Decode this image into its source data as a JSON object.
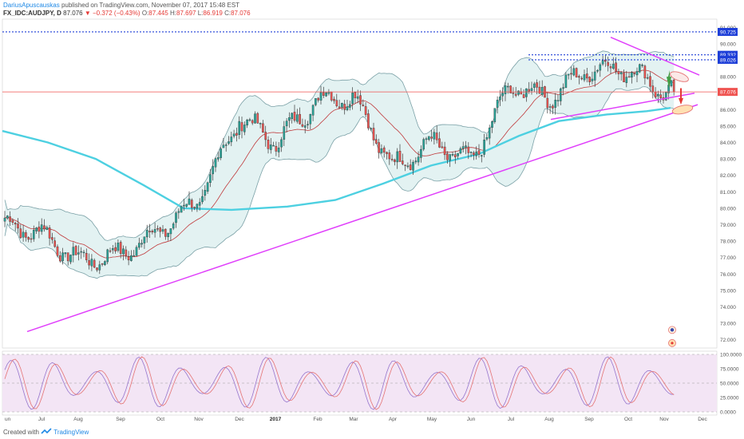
{
  "header": {
    "author": "DariusApuscauskas",
    "published_text": "published on TradingView.com, November 07, 2017 15:48 EST",
    "symbol": "FX_IDC:AUDJPY, D",
    "last": "87.076",
    "arrow": "▼",
    "change": "−0.372 (−0.43%)",
    "o_label": "O:",
    "o_val": "87.445",
    "h_label": "H:",
    "h_val": "87.697",
    "l_label": "L:",
    "l_val": "86.919",
    "c_label": "C:",
    "c_val": "87.076"
  },
  "footer": {
    "created_with": "Created with",
    "brand": "TradingView"
  },
  "colors": {
    "up": "#26a69a",
    "down": "#ef5350",
    "candle": "#3a3a3a",
    "bollinger_fill": "#e3f2f2",
    "bollinger_line": "#7aa0a6",
    "ma_mid": "#c0393b",
    "ma200": "#4dd0e1",
    "trendline": "#e040fb",
    "hline_blue": "#1e3fd8",
    "hline_red": "#ef5350",
    "rsi_fill": "#f3e5f5",
    "rsi_line1": "#9575cd",
    "rsi_line2": "#e57373"
  },
  "chart_data": {
    "type": "candlestick",
    "price_axis": {
      "ticks": [
        "91.000",
        "90.000",
        "89.000",
        "88.000",
        "87.000",
        "86.000",
        "85.000",
        "84.000",
        "83.000",
        "82.000",
        "81.000",
        "80.000",
        "79.000",
        "78.000",
        "77.000",
        "76.000",
        "75.000",
        "74.000",
        "73.000",
        "72.000"
      ],
      "ylim": [
        71.5,
        91.5
      ]
    },
    "time_axis": {
      "ticks": [
        "Jun",
        "Jul",
        "Aug",
        "Sep",
        "Oct",
        "Nov",
        "Dec",
        "2017",
        "Feb",
        "Mar",
        "Apr",
        "May",
        "Jun",
        "Jul",
        "Aug",
        "Sep",
        "Oct",
        "Nov",
        "Dec"
      ]
    },
    "price_labels": [
      {
        "value": "90.725",
        "color": "#1e3fd8"
      },
      {
        "value": "89.332",
        "color": "#1e3fd8"
      },
      {
        "value": "89.026",
        "color": "#1e3fd8"
      },
      {
        "value": "87.076",
        "color": "#ef5350"
      }
    ],
    "horizontal_lines": [
      {
        "price": 90.725,
        "color": "#1e3fd8",
        "style": "dotted"
      },
      {
        "price": 89.332,
        "color": "#1e3fd8",
        "style": "dotted"
      },
      {
        "price": 89.026,
        "color": "#1e3fd8",
        "style": "dotted"
      },
      {
        "price": 87.076,
        "color": "#ef5350",
        "style": "solid"
      }
    ],
    "close_series": [
      {
        "month": "Jun",
        "close": 79.0
      },
      {
        "month": "Jul",
        "close": 78.5
      },
      {
        "month": "Aug",
        "close": 76.8
      },
      {
        "month": "Sep",
        "close": 77.2
      },
      {
        "month": "Oct",
        "close": 78.7
      },
      {
        "month": "Nov",
        "close": 80.5
      },
      {
        "month": "Dec",
        "close": 85.5
      },
      {
        "month": "2017",
        "close": 84.0
      },
      {
        "month": "Feb",
        "close": 86.6
      },
      {
        "month": "Mar",
        "close": 86.8
      },
      {
        "month": "Apr",
        "close": 82.5
      },
      {
        "month": "May",
        "close": 84.0
      },
      {
        "month": "Jun",
        "close": 82.8
      },
      {
        "month": "Jul",
        "close": 87.5
      },
      {
        "month": "Aug",
        "close": 86.7
      },
      {
        "month": "Sep",
        "close": 88.5
      },
      {
        "month": "Oct",
        "close": 88.5
      },
      {
        "month": "Nov",
        "close": 87.076
      }
    ],
    "rsi_axis": {
      "ticks": [
        "100.0000",
        "75.0000",
        "50.0000",
        "25.0000",
        "0.0000"
      ],
      "ylim": [
        0,
        100
      ]
    }
  }
}
